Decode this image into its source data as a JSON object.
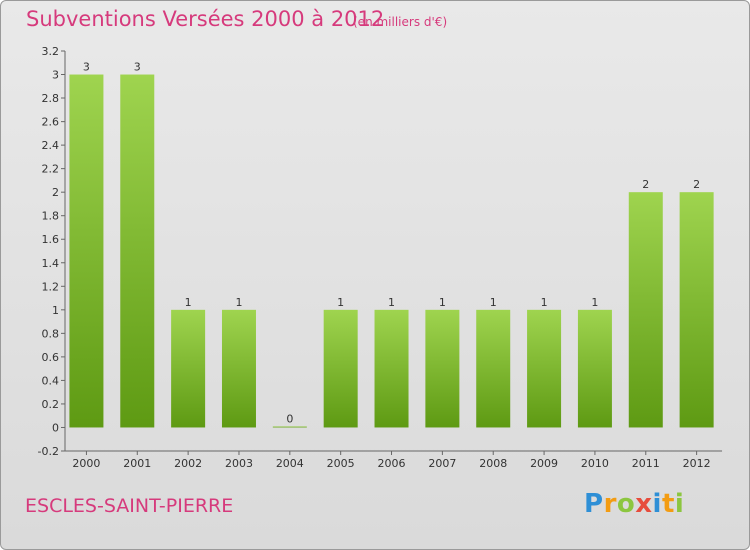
{
  "header": {
    "title": "Subventions Versées 2000 à 2012",
    "unit_note": "(en milliers d'€)"
  },
  "footer": {
    "commune": "ESCLES-SAINT-PIERRE",
    "logo_text": "Proxiti",
    "logo_letters": [
      "P",
      "r",
      "o",
      "x",
      "i",
      "t",
      "i"
    ],
    "logo_colors": [
      "#2e8fd6",
      "#f39c12",
      "#8cc63f",
      "#e74c3c",
      "#2e8fd6",
      "#f39c12",
      "#8cc63f"
    ]
  },
  "chart_data": {
    "type": "bar",
    "title": "Subventions Versées 2000 à 2012",
    "subtitle": "(en milliers d'€)",
    "xlabel": "",
    "ylabel": "",
    "categories": [
      "2000",
      "2001",
      "2002",
      "2003",
      "2004",
      "2005",
      "2006",
      "2007",
      "2008",
      "2009",
      "2010",
      "2011",
      "2012"
    ],
    "values": [
      3,
      3,
      1,
      1,
      0,
      1,
      1,
      1,
      1,
      1,
      1,
      2,
      2
    ],
    "data_labels": [
      "3",
      "3",
      "1",
      "1",
      "0",
      "1",
      "1",
      "1",
      "1",
      "1",
      "1",
      "2",
      "2"
    ],
    "ylim": [
      -0.2,
      3.2
    ],
    "yticks": [
      -0.2,
      0,
      0.2,
      0.4,
      0.6,
      0.8,
      1,
      1.2,
      1.4,
      1.6,
      1.8,
      2,
      2.2,
      2.4,
      2.6,
      2.8,
      3,
      3.2
    ],
    "ytick_labels": [
      "-0.2",
      "0",
      "0.2",
      "0.4",
      "0.6",
      "0.8",
      "1",
      "1.2",
      "1.4",
      "1.6",
      "1.8",
      "2",
      "2.2",
      "2.4",
      "2.6",
      "2.8",
      "3",
      "3.2"
    ],
    "grid": false,
    "colors": {
      "bar_top": "#9fd44f",
      "bar_bottom": "#5e9a13",
      "axis": "#666666",
      "text": "#333333"
    }
  }
}
